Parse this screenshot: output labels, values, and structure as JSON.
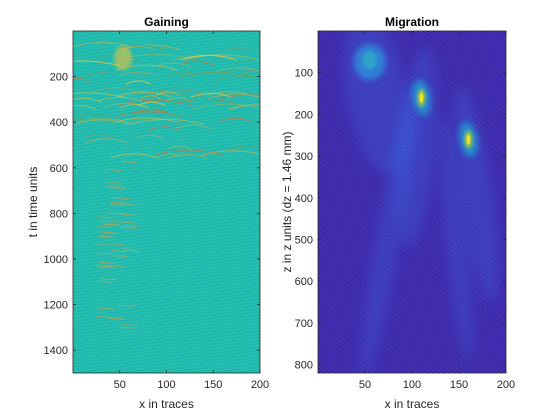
{
  "chart_data": [
    {
      "type": "heatmap",
      "title": "Gaining",
      "xlabel": "x in traces",
      "ylabel": "t in time units",
      "xlim": [
        0,
        200
      ],
      "ylim": [
        1500,
        0
      ],
      "y_reversed": true,
      "xticks": [
        50,
        100,
        150,
        200
      ],
      "yticks": [
        200,
        400,
        600,
        800,
        1000,
        1200,
        1400
      ],
      "colormap": "parula",
      "background_color": "#1fb8b0"
    },
    {
      "type": "heatmap",
      "title": "Migration",
      "xlabel": "x in traces",
      "ylabel": "z in z units (dz = 1.46 mm)",
      "xlim": [
        0,
        200
      ],
      "ylim": [
        820,
        0
      ],
      "y_reversed": true,
      "xticks": [
        50,
        100,
        150,
        200
      ],
      "yticks": [
        100,
        200,
        300,
        400,
        500,
        600,
        700,
        800
      ],
      "colormap": "parula",
      "background_color": "#3e26a8",
      "features": [
        {
          "x": 55,
          "y": 60,
          "level": "medium"
        },
        {
          "x": 110,
          "y": 160,
          "level": "high"
        },
        {
          "x": 160,
          "y": 260,
          "level": "high"
        }
      ]
    }
  ]
}
